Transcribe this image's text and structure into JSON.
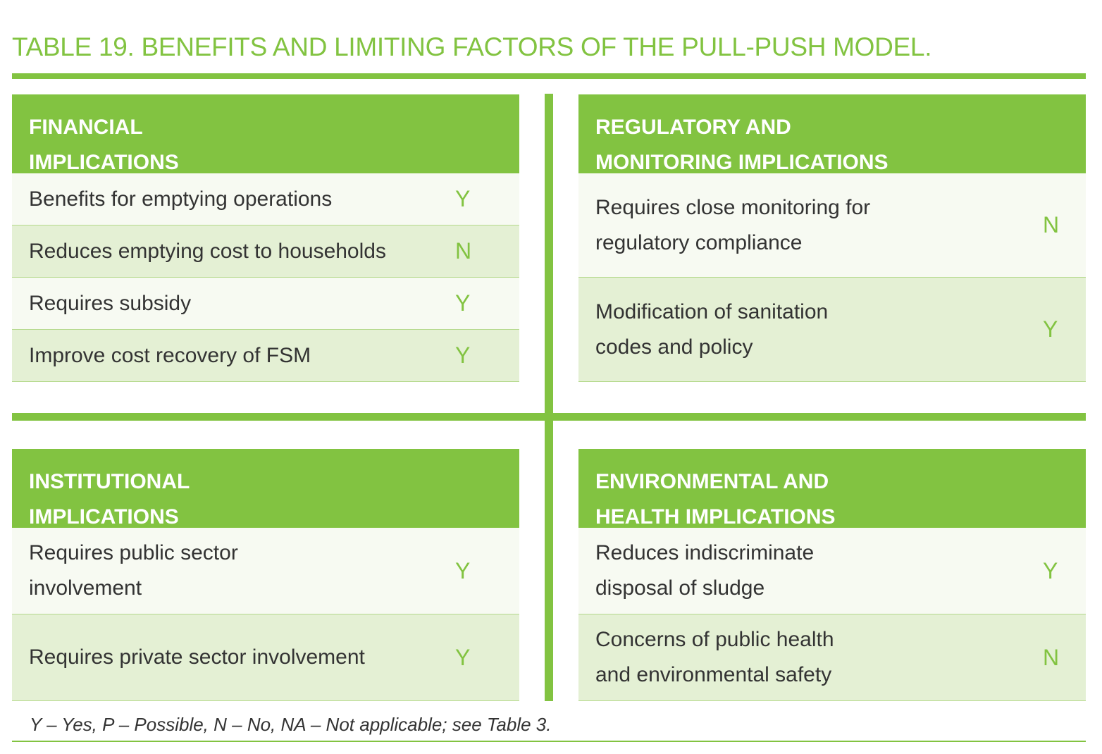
{
  "title": "TABLE 19. BENEFITS AND LIMITING FACTORS OF THE PULL-PUSH MODEL.",
  "panels": {
    "financial": {
      "heading": [
        "FINANCIAL",
        "IMPLICATIONS"
      ],
      "rows": [
        {
          "label": "Benefits for emptying operations",
          "value": "Y"
        },
        {
          "label": "Reduces emptying cost to households",
          "value": "N"
        },
        {
          "label": "Requires subsidy",
          "value": "Y"
        },
        {
          "label": "Improve cost recovery of FSM",
          "value": "Y"
        }
      ]
    },
    "regulatory": {
      "heading": [
        "REGULATORY AND",
        "MONITORING IMPLICATIONS"
      ],
      "rows": [
        {
          "label": "Requires close monitoring for\nregulatory compliance",
          "value": "N"
        },
        {
          "label": "Modification of sanitation\ncodes and policy",
          "value": "Y"
        }
      ]
    },
    "institutional": {
      "heading": [
        "INSTITUTIONAL",
        "IMPLICATIONS"
      ],
      "rows": [
        {
          "label": "Requires public sector\ninvolvement",
          "value": "Y"
        },
        {
          "label": "Requires private sector involvement",
          "value": "Y"
        }
      ]
    },
    "environmental": {
      "heading": [
        "ENVIRONMENTAL AND",
        "HEALTH IMPLICATIONS"
      ],
      "rows": [
        {
          "label": "Reduces indiscriminate\ndisposal of sludge",
          "value": "Y"
        },
        {
          "label": "Concerns of public health\nand environmental safety",
          "value": "N"
        }
      ]
    }
  },
  "footnote": "Y – Yes, P – Possible, N – No, NA – Not applicable; see Table 3."
}
